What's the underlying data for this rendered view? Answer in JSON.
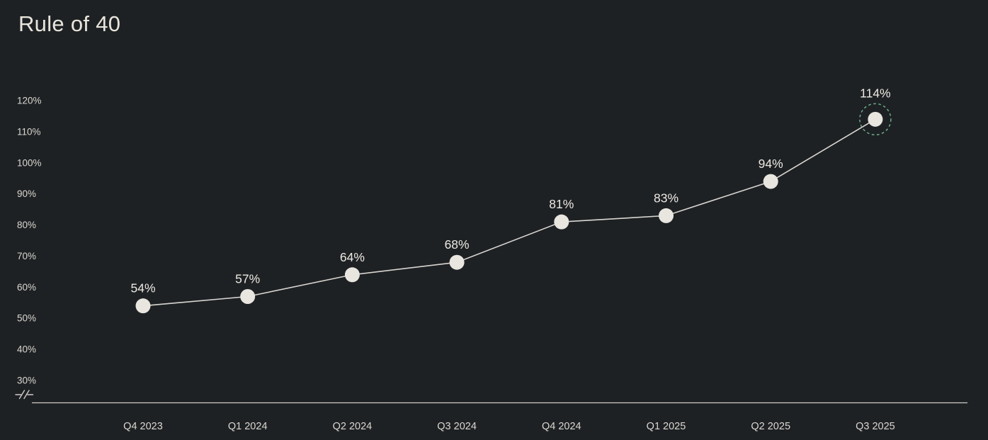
{
  "chart_data": {
    "type": "line",
    "title": "Rule of 40",
    "xlabel": "",
    "ylabel": "",
    "categories": [
      "Q4 2023",
      "Q1 2024",
      "Q2 2024",
      "Q3 2024",
      "Q4 2024",
      "Q1 2025",
      "Q2 2025",
      "Q3 2025"
    ],
    "series": [
      {
        "name": "Rule of 40",
        "values": [
          54,
          57,
          64,
          68,
          81,
          83,
          94,
          114
        ],
        "point_labels": [
          "54%",
          "57%",
          "64%",
          "68%",
          "81%",
          "83%",
          "94%",
          "114%"
        ]
      }
    ],
    "ylim": [
      30,
      120
    ],
    "y_ticks": [
      {
        "value": 120,
        "label": "120%"
      },
      {
        "value": 110,
        "label": "110%"
      },
      {
        "value": 100,
        "label": "100%"
      },
      {
        "value": 90,
        "label": "90%"
      },
      {
        "value": 80,
        "label": "80%"
      },
      {
        "value": 70,
        "label": "70%"
      },
      {
        "value": 60,
        "label": "60%"
      },
      {
        "value": 50,
        "label": "50%"
      },
      {
        "value": 40,
        "label": "40%"
      },
      {
        "value": 30,
        "label": "30%"
      }
    ],
    "axis_break_symbol": "-//-",
    "grid": false,
    "legend_position": "none",
    "highlight": {
      "index": 7,
      "style": "dashed-ring"
    },
    "colors": {
      "background": "#1e2124",
      "line": "#d9d6d1",
      "point_fill": "#e9e6e0",
      "point_label": "#ece9e2",
      "axis_line": "#cfccc6",
      "y_tick_text": "#dad7d0",
      "x_tick_text": "#dad7d1",
      "highlight_ring": "#6cab8a",
      "title_text": "#e9e5dc"
    }
  }
}
